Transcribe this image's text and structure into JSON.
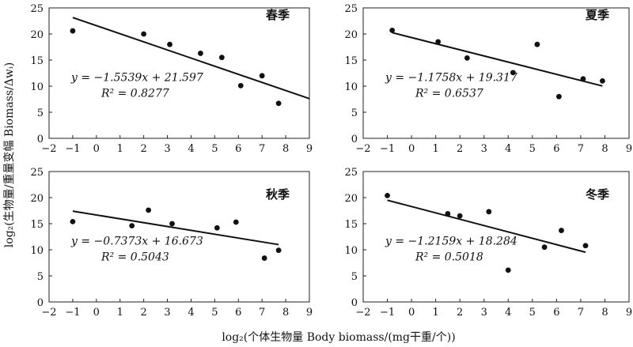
{
  "y_axis_title": "log₂(生物量/重量变幅 Biomass/Δwᵢ)",
  "x_axis_title": "log₂(个体生物量 Body biomass/(mg干重/个))",
  "chart_data": [
    {
      "type": "scatter",
      "title": "春季",
      "xlim": [
        -2,
        9
      ],
      "ylim": [
        0,
        25
      ],
      "xticks": [
        -2,
        -1,
        0,
        1,
        2,
        3,
        4,
        5,
        6,
        7,
        8,
        9
      ],
      "yticks": [
        0,
        5,
        10,
        15,
        20,
        25
      ],
      "points": [
        [
          -1.0,
          20.6
        ],
        [
          2.0,
          20.0
        ],
        [
          3.1,
          18.0
        ],
        [
          4.4,
          16.3
        ],
        [
          5.3,
          15.5
        ],
        [
          6.1,
          10.1
        ],
        [
          7.0,
          12.0
        ],
        [
          7.7,
          6.7
        ]
      ],
      "fit": {
        "slope": -1.5539,
        "intercept": 21.597,
        "x_range": [
          -1.0,
          9.0
        ]
      },
      "equation": "y = −1.5539x + 21.597",
      "r2": "R² = 0.8277"
    },
    {
      "type": "scatter",
      "title": "夏季",
      "xlim": [
        -2,
        9
      ],
      "ylim": [
        0,
        25
      ],
      "xticks": [
        -2,
        -1,
        0,
        1,
        2,
        3,
        4,
        5,
        6,
        7,
        8,
        9
      ],
      "yticks": [
        0,
        5,
        10,
        15,
        20,
        25
      ],
      "points": [
        [
          -0.8,
          20.7
        ],
        [
          1.1,
          18.5
        ],
        [
          2.3,
          15.4
        ],
        [
          4.2,
          12.6
        ],
        [
          5.2,
          18.0
        ],
        [
          6.1,
          8.0
        ],
        [
          7.1,
          11.4
        ],
        [
          7.9,
          11.0
        ]
      ],
      "fit": {
        "slope": -1.1758,
        "intercept": 19.317,
        "x_range": [
          -0.8,
          7.9
        ]
      },
      "equation": "y = −1.1758x + 19.317",
      "r2": "R² = 0.6537"
    },
    {
      "type": "scatter",
      "title": "秋季",
      "xlim": [
        -2,
        9
      ],
      "ylim": [
        0,
        25
      ],
      "xticks": [
        -2,
        -1,
        0,
        1,
        2,
        3,
        4,
        5,
        6,
        7,
        8,
        9
      ],
      "yticks": [
        0,
        5,
        10,
        15,
        20,
        25
      ],
      "points": [
        [
          -1.0,
          15.4
        ],
        [
          1.5,
          14.6
        ],
        [
          2.2,
          17.6
        ],
        [
          3.2,
          15.0
        ],
        [
          5.1,
          14.2
        ],
        [
          5.9,
          15.3
        ],
        [
          7.1,
          8.4
        ],
        [
          7.7,
          9.9
        ]
      ],
      "fit": {
        "slope": -0.7373,
        "intercept": 16.673,
        "x_range": [
          -1.0,
          7.7
        ]
      },
      "equation": "y = −0.7373x + 16.673",
      "r2": "R² = 0.5043"
    },
    {
      "type": "scatter",
      "title": "冬季",
      "xlim": [
        -2,
        9
      ],
      "ylim": [
        0,
        25
      ],
      "xticks": [
        -2,
        -1,
        0,
        1,
        2,
        3,
        4,
        5,
        6,
        7,
        8,
        9
      ],
      "yticks": [
        0,
        5,
        10,
        15,
        20,
        25
      ],
      "points": [
        [
          -1.0,
          20.4
        ],
        [
          1.5,
          16.9
        ],
        [
          2.0,
          16.5
        ],
        [
          3.2,
          17.3
        ],
        [
          4.0,
          6.1
        ],
        [
          5.5,
          10.5
        ],
        [
          6.2,
          13.7
        ],
        [
          7.2,
          10.8
        ]
      ],
      "fit": {
        "slope": -1.2159,
        "intercept": 18.284,
        "x_range": [
          -1.0,
          7.2
        ]
      },
      "equation": "y = −1.2159x + 18.284",
      "r2": "R² = 0.5018"
    }
  ]
}
